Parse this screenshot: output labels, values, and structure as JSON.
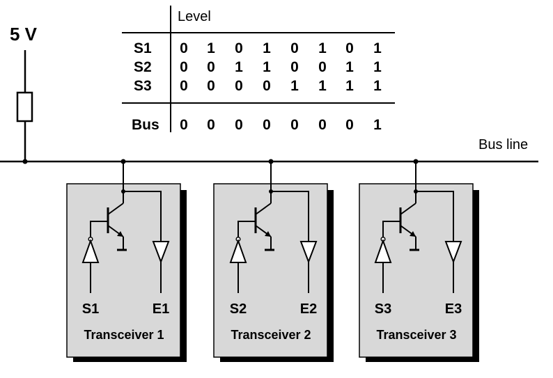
{
  "supply": {
    "label": "5 V"
  },
  "table": {
    "header": "Level",
    "rows": [
      {
        "label": "S1",
        "values": [
          "0",
          "1",
          "0",
          "1",
          "0",
          "1",
          "0",
          "1"
        ]
      },
      {
        "label": "S2",
        "values": [
          "0",
          "0",
          "1",
          "1",
          "0",
          "0",
          "1",
          "1"
        ]
      },
      {
        "label": "S3",
        "values": [
          "0",
          "0",
          "0",
          "0",
          "1",
          "1",
          "1",
          "1"
        ]
      }
    ],
    "bus": {
      "label": "Bus",
      "values": [
        "0",
        "0",
        "0",
        "0",
        "0",
        "0",
        "0",
        "1"
      ]
    }
  },
  "bus_line": {
    "label": "Bus line"
  },
  "transceivers": [
    {
      "title": "Transceiver 1",
      "input": "S1",
      "output": "E1"
    },
    {
      "title": "Transceiver 2",
      "input": "S2",
      "output": "E2"
    },
    {
      "title": "Transceiver 3",
      "input": "S3",
      "output": "E3"
    }
  ],
  "colors": {
    "box_fill": "#d8d8d8",
    "shadow": "#000000",
    "line": "#000000"
  }
}
